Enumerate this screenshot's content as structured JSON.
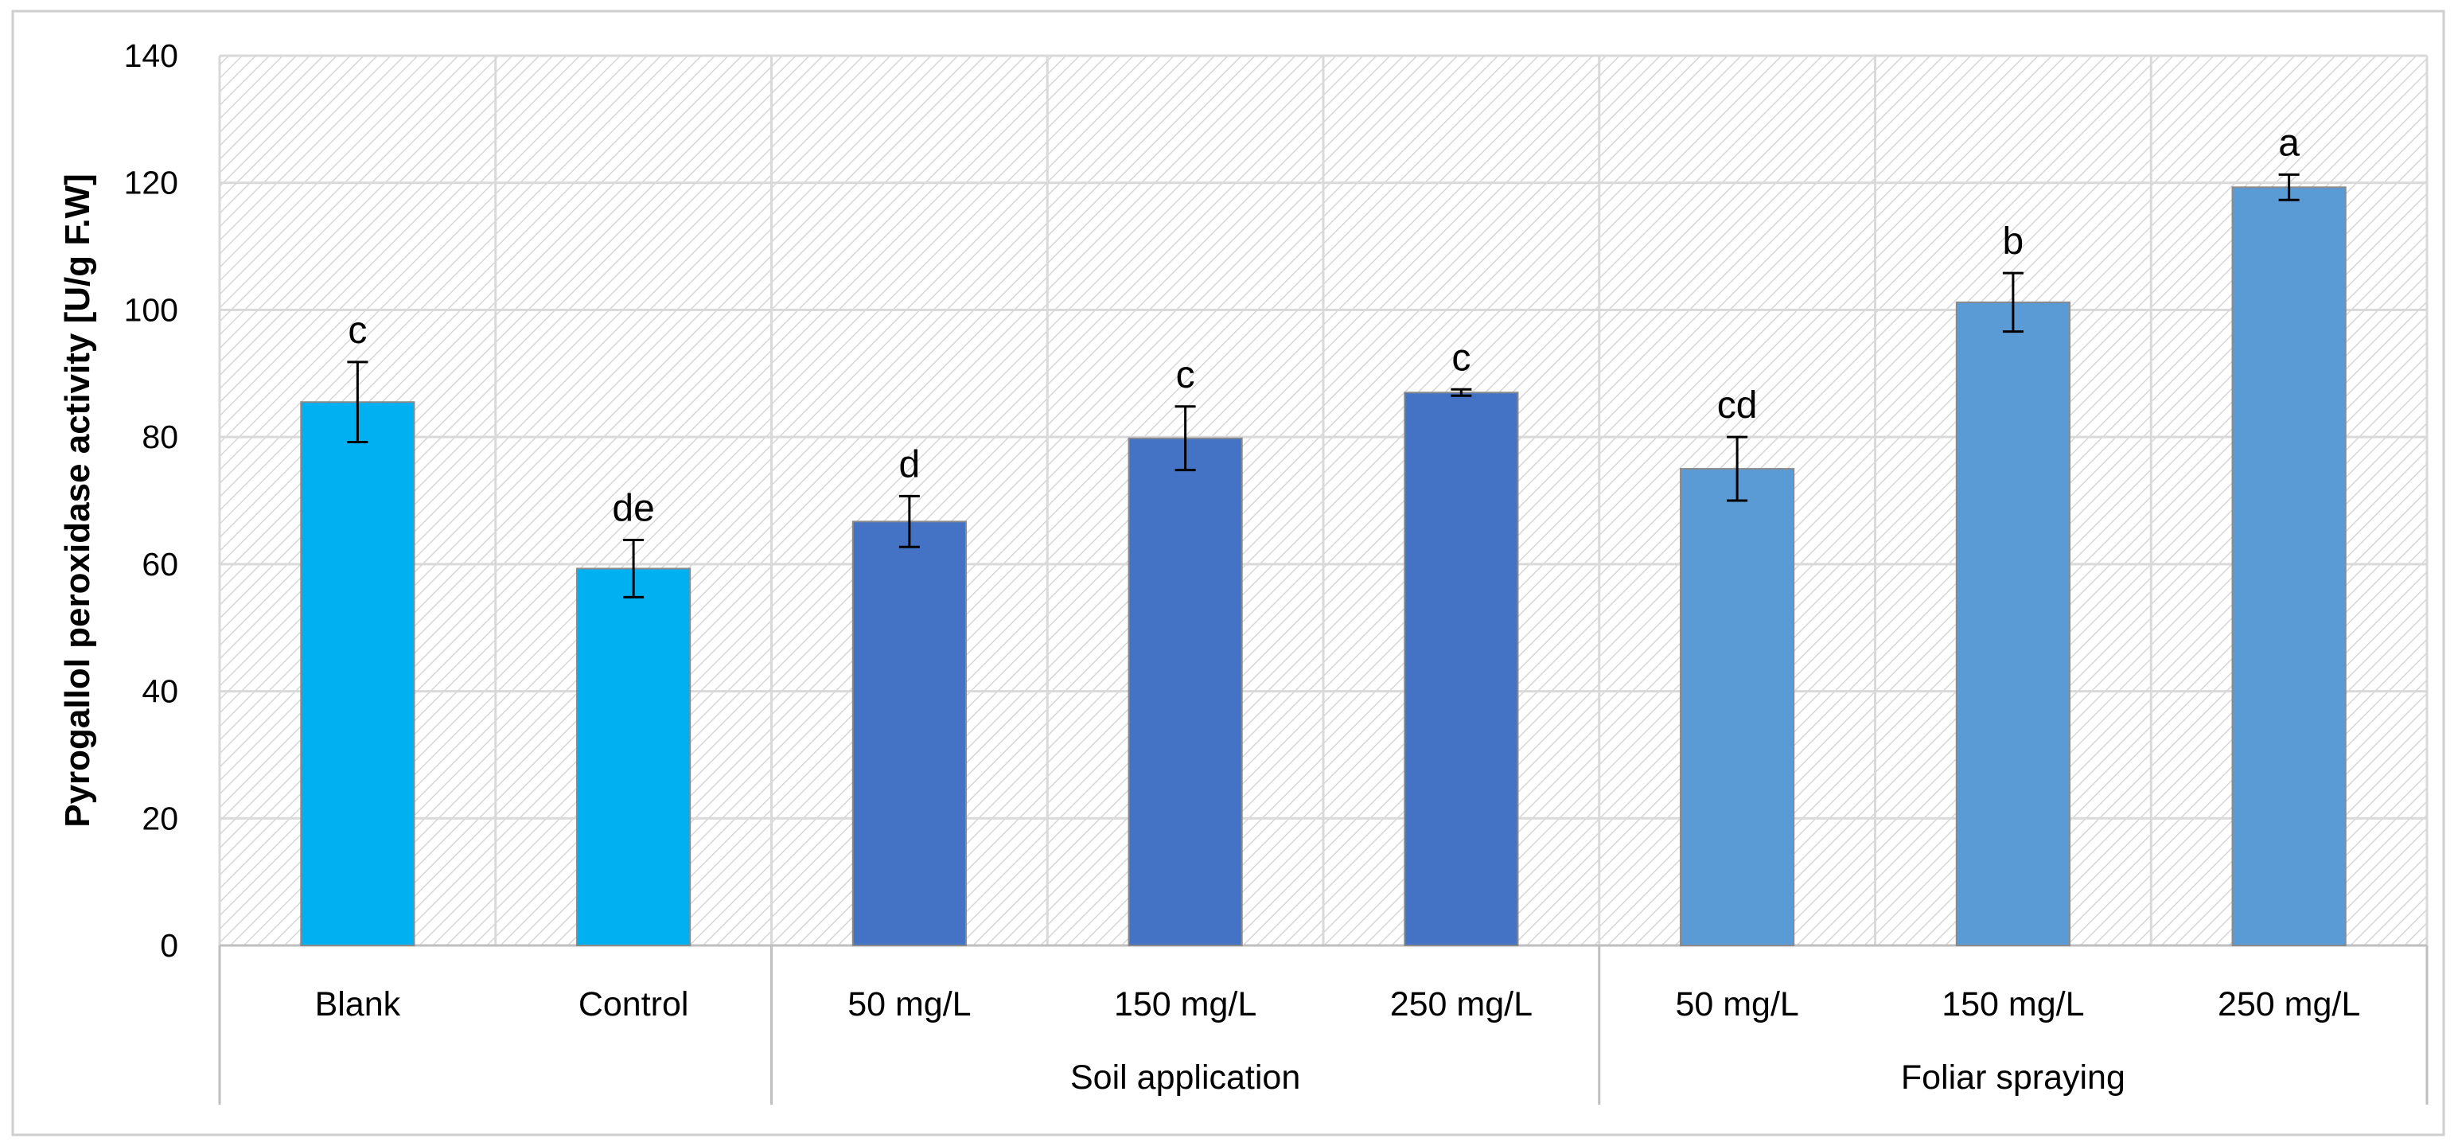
{
  "chart_data": {
    "type": "bar",
    "title": "",
    "xlabel": "",
    "ylabel": "Pyrogallol peroxidase activity [U/g F.W]",
    "ylim": [
      0,
      140
    ],
    "yticks": [
      0,
      20,
      40,
      60,
      80,
      100,
      120,
      140
    ],
    "grid": true,
    "categories": [
      "Blank",
      "Control",
      "50 mg/L",
      "150 mg/L",
      "250 mg/L",
      "50 mg/L",
      "150 mg/L",
      "250 mg/L"
    ],
    "values": [
      85.5,
      59.3,
      66.7,
      79.8,
      87.0,
      75.0,
      101.2,
      119.3
    ],
    "errors": [
      6.3,
      4.5,
      4.0,
      5.0,
      0.5,
      5.0,
      4.6,
      2.0
    ],
    "letters": [
      "c",
      "de",
      "d",
      "c",
      "c",
      "cd",
      "b",
      "a"
    ],
    "colors": [
      "#00B0F0",
      "#00B0F0",
      "#4472C4",
      "#4472C4",
      "#4472C4",
      "#5B9BD5",
      "#5B9BD5",
      "#5B9BD5"
    ],
    "groups": [
      {
        "label": "Soil application",
        "start": 2,
        "end": 4
      },
      {
        "label": "Foliar spraying",
        "start": 5,
        "end": 7
      }
    ]
  }
}
